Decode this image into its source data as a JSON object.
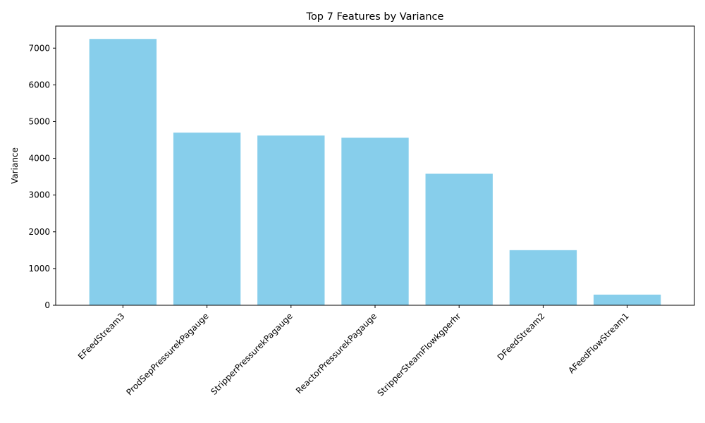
{
  "chart_data": {
    "type": "bar",
    "title": "Top 7 Features by Variance",
    "xlabel": "",
    "ylabel": "Variance",
    "categories": [
      "EFeedStream3",
      "ProdSepPressurekPagauge",
      "StripperPressurekPagauge",
      "ReactorPressurekPagauge",
      "StripperSteamFlowkgperhr",
      "DFeedStream2",
      "AFeedFlowStream1"
    ],
    "values": [
      7250,
      4700,
      4620,
      4560,
      3580,
      1500,
      290
    ],
    "ylim": [
      0,
      7600
    ],
    "yticks": [
      0,
      1000,
      2000,
      3000,
      4000,
      5000,
      6000,
      7000
    ],
    "grid": false,
    "legend": "none",
    "bar_color": "#87CEEB"
  }
}
